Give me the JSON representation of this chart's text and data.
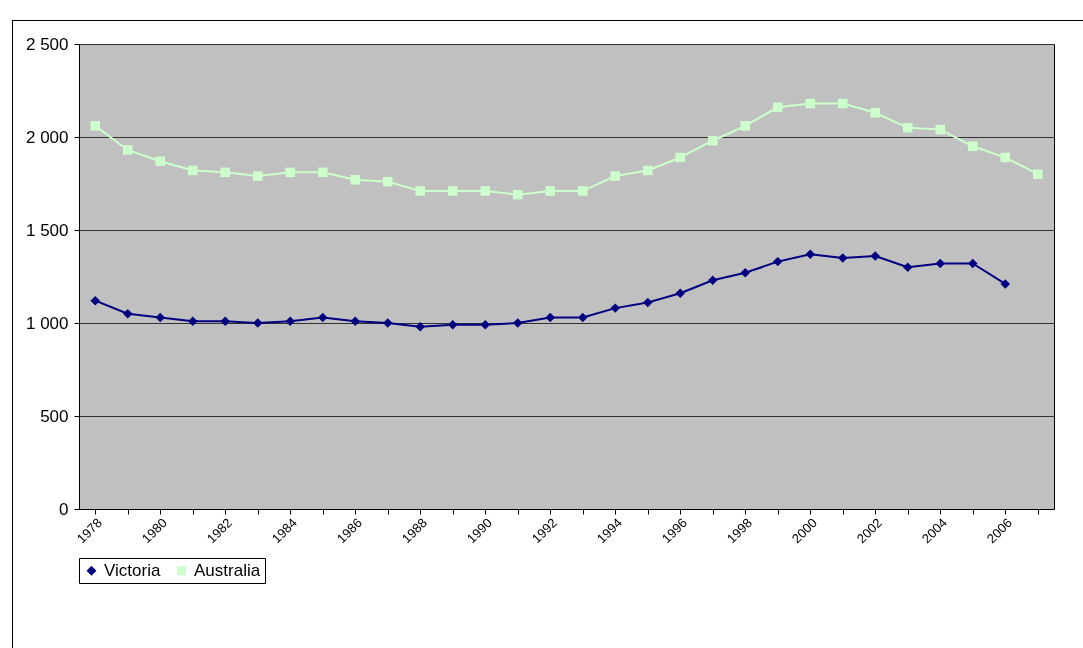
{
  "chart_data": {
    "type": "line",
    "categories": [
      "1978",
      null,
      "1980",
      null,
      "1982",
      null,
      "1984",
      null,
      "1986",
      null,
      "1988",
      null,
      "1990",
      null,
      "1992",
      null,
      "1994",
      null,
      "1996",
      null,
      "1998",
      null,
      "2000",
      null,
      "2002",
      null,
      "2004",
      null,
      "2006",
      null
    ],
    "series": [
      {
        "name": "Victoria",
        "color": "#000080",
        "marker": "diamond",
        "values": [
          1120,
          1050,
          1030,
          1010,
          1010,
          1000,
          1010,
          1030,
          1010,
          1000,
          980,
          990,
          990,
          1000,
          1030,
          1030,
          1080,
          1110,
          1160,
          1230,
          1270,
          1330,
          1370,
          1350,
          1360,
          1300,
          1320,
          1320,
          1210,
          null
        ]
      },
      {
        "name": "Australia",
        "color": "#ccffcc",
        "marker": "square",
        "values": [
          2060,
          1930,
          1870,
          1820,
          1810,
          1790,
          1810,
          1810,
          1770,
          1760,
          1710,
          1710,
          1710,
          1690,
          1710,
          1710,
          1790,
          1820,
          1890,
          1980,
          2060,
          2160,
          2180,
          2180,
          2130,
          2050,
          2040,
          1950,
          1890,
          1800
        ]
      }
    ],
    "ylim": [
      0,
      2500
    ],
    "yticks": [
      0,
      500,
      {
        "value": 1000,
        "label": "1 000"
      },
      {
        "value": 1500,
        "label": "1 500"
      },
      {
        "value": 2000,
        "label": "2 000"
      },
      {
        "value": 2500,
        "label": "2 500"
      }
    ],
    "grid": "y",
    "legend": "bottom"
  }
}
